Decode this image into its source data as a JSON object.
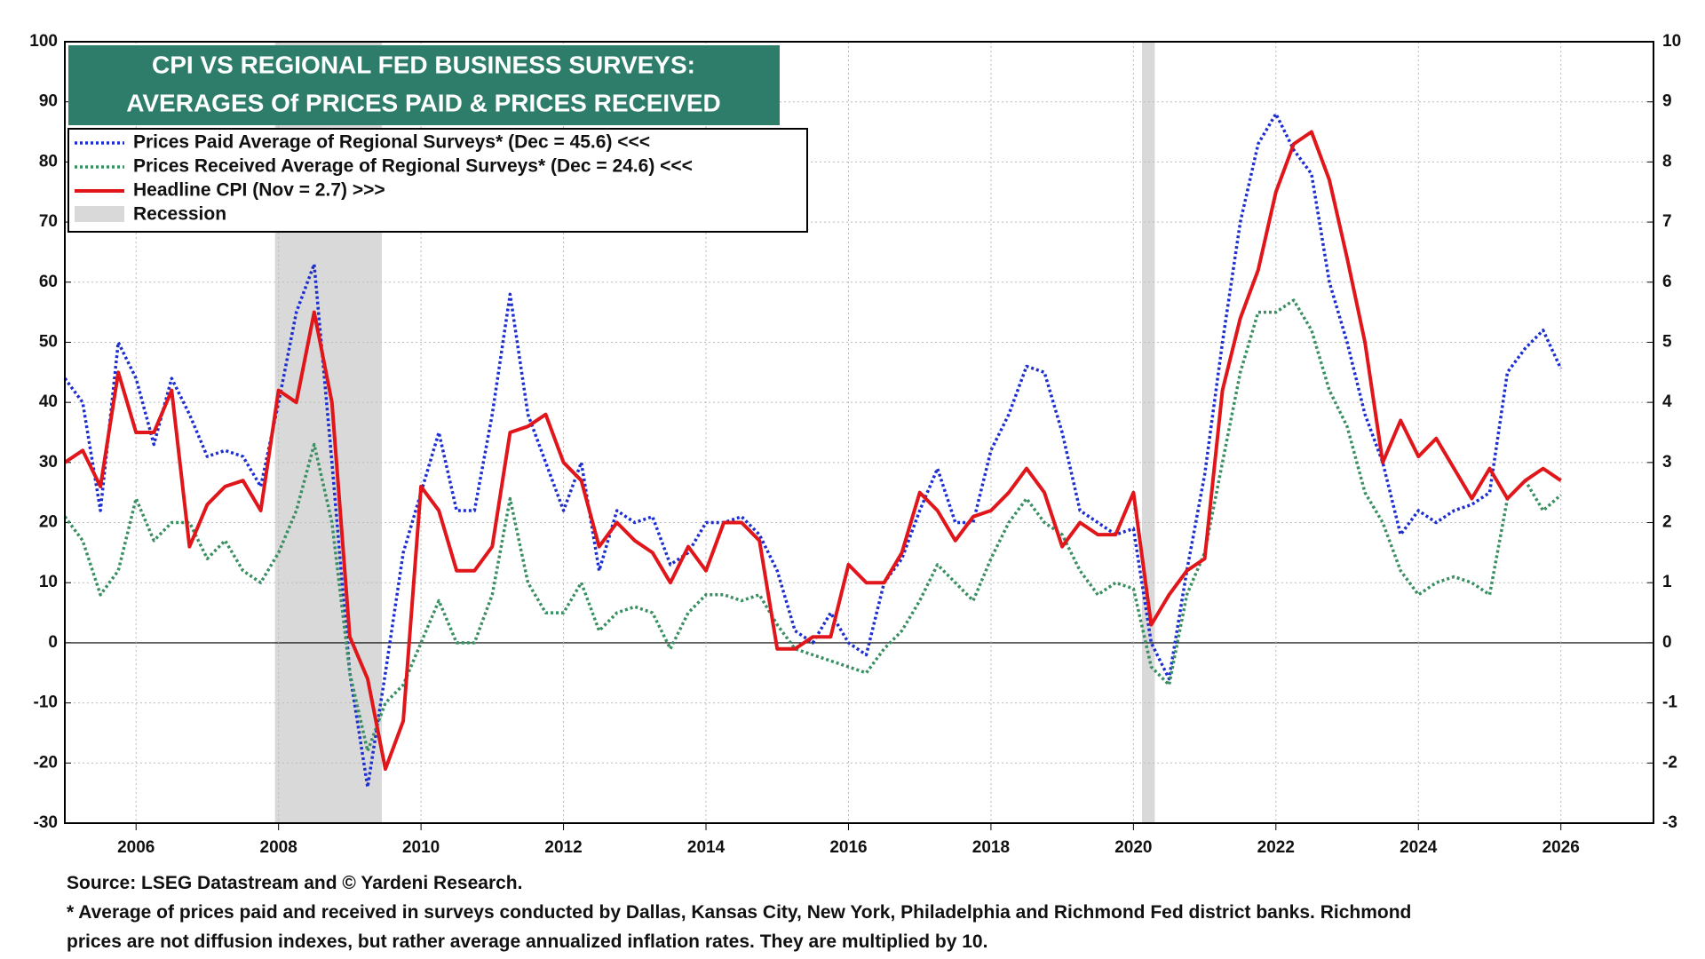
{
  "chart_data": {
    "type": "line",
    "title_lines": [
      "CPI VS REGIONAL FED BUSINESS SURVEYS:",
      "AVERAGES Of PRICES PAID & PRICES RECEIVED"
    ],
    "x": [
      2005,
      2005.25,
      2005.5,
      2005.75,
      2006,
      2006.25,
      2006.5,
      2006.75,
      2007,
      2007.25,
      2007.5,
      2007.75,
      2008,
      2008.25,
      2008.5,
      2008.75,
      2009,
      2009.25,
      2009.5,
      2009.75,
      2010,
      2010.25,
      2010.5,
      2010.75,
      2011,
      2011.25,
      2011.5,
      2011.75,
      2012,
      2012.25,
      2012.5,
      2012.75,
      2013,
      2013.25,
      2013.5,
      2013.75,
      2014,
      2014.25,
      2014.5,
      2014.75,
      2015,
      2015.25,
      2015.5,
      2015.75,
      2016,
      2016.25,
      2016.5,
      2016.75,
      2017,
      2017.25,
      2017.5,
      2017.75,
      2018,
      2018.25,
      2018.5,
      2018.75,
      2019,
      2019.25,
      2019.5,
      2019.75,
      2020,
      2020.25,
      2020.5,
      2020.75,
      2021,
      2021.25,
      2021.5,
      2021.75,
      2022,
      2022.25,
      2022.5,
      2022.75,
      2023,
      2023.25,
      2023.5,
      2023.75,
      2024,
      2024.25,
      2024.5,
      2024.75,
      2025,
      2025.25,
      2025.5,
      2025.75,
      2026
    ],
    "series": [
      {
        "name": "Prices Paid Average of Regional Surveys* (Dec = 45.6) <<<",
        "color": "#1c2ed0",
        "style": "dotted",
        "axis": "y",
        "values": [
          44,
          40,
          22,
          50,
          44,
          33,
          44,
          38,
          31,
          32,
          31,
          26,
          40,
          55,
          63,
          30,
          -5,
          -24,
          -5,
          15,
          25,
          35,
          22,
          22,
          38,
          58,
          38,
          30,
          22,
          30,
          12,
          22,
          20,
          21,
          13,
          15,
          20,
          20,
          21,
          18,
          12,
          2,
          0,
          5,
          0,
          -2,
          10,
          14,
          22,
          29,
          20,
          20,
          32,
          38,
          46,
          45,
          35,
          22,
          20,
          18,
          19,
          0,
          -6,
          12,
          28,
          50,
          70,
          83,
          88,
          82,
          78,
          60,
          50,
          38,
          30,
          18,
          22,
          20,
          22,
          23,
          25,
          45,
          49,
          52,
          45.6
        ]
      },
      {
        "name": "Prices Received Average of Regional Surveys* (Dec = 24.6) <<<",
        "color": "#3a8f62",
        "style": "dotted",
        "axis": "y",
        "values": [
          21,
          17,
          8,
          12,
          24,
          17,
          20,
          20,
          14,
          17,
          12,
          10,
          15,
          22,
          33,
          20,
          -5,
          -18,
          -10,
          -7,
          0,
          7,
          0,
          0,
          8,
          24,
          10,
          5,
          5,
          10,
          2,
          5,
          6,
          5,
          -1,
          5,
          8,
          8,
          7,
          8,
          3,
          -1,
          -2,
          -3,
          -4,
          -5,
          -1,
          2,
          7,
          13,
          10,
          7,
          14,
          20,
          24,
          20,
          18,
          12,
          8,
          10,
          9,
          -4,
          -7,
          8,
          15,
          30,
          45,
          55,
          55,
          57,
          52,
          42,
          36,
          25,
          20,
          12,
          8,
          10,
          11,
          10,
          8,
          24,
          27,
          22,
          24.6
        ]
      },
      {
        "name": "Headline CPI (Nov = 2.7) >>>",
        "color": "#e0161b",
        "style": "solid",
        "axis": "y2",
        "values": [
          3.0,
          3.2,
          2.6,
          4.5,
          3.5,
          3.5,
          4.2,
          1.6,
          2.3,
          2.6,
          2.7,
          2.2,
          4.2,
          4.0,
          5.5,
          4.0,
          0.1,
          -0.6,
          -2.1,
          -1.3,
          2.6,
          2.2,
          1.2,
          1.2,
          1.6,
          3.5,
          3.6,
          3.8,
          3.0,
          2.7,
          1.6,
          2.0,
          1.7,
          1.5,
          1.0,
          1.6,
          1.2,
          2.0,
          2.0,
          1.7,
          -0.1,
          -0.1,
          0.1,
          0.1,
          1.3,
          1.0,
          1.0,
          1.5,
          2.5,
          2.2,
          1.7,
          2.1,
          2.2,
          2.5,
          2.9,
          2.5,
          1.6,
          2.0,
          1.8,
          1.8,
          2.5,
          0.3,
          0.8,
          1.2,
          1.4,
          4.2,
          5.4,
          6.2,
          7.5,
          8.3,
          8.5,
          7.7,
          6.4,
          5.0,
          3.0,
          3.7,
          3.1,
          3.4,
          2.9,
          2.4,
          2.9,
          2.4,
          2.7,
          2.9,
          2.7
        ]
      }
    ],
    "recession_label": "Recession",
    "recession_color": "#d9d9d9",
    "recessions": [
      [
        2007.95,
        2009.45
      ],
      [
        2020.12,
        2020.3
      ]
    ],
    "xlim": [
      2005,
      2027.3
    ],
    "xticks": [
      2006,
      2008,
      2010,
      2012,
      2014,
      2016,
      2018,
      2020,
      2022,
      2024,
      2026
    ],
    "ylim": [
      -30,
      100
    ],
    "yticks": [
      -30,
      -20,
      -10,
      0,
      10,
      20,
      30,
      40,
      50,
      60,
      70,
      80,
      90,
      100
    ],
    "y2lim": [
      -3,
      10
    ],
    "y2ticks": [
      -3,
      -2,
      -1,
      0,
      1,
      2,
      3,
      4,
      5,
      6,
      7,
      8,
      9,
      10
    ],
    "grid": true,
    "source": "Source: LSEG Datastream and © Yardeni Research.",
    "note_lines": [
      "* Average of prices paid and received in surveys conducted by Dallas, Kansas City, New York, Philadelphia and Richmond Fed district banks. Richmond",
      "prices are not diffusion indexes, but rather average annualized inflation rates. They are multiplied by 10."
    ]
  }
}
